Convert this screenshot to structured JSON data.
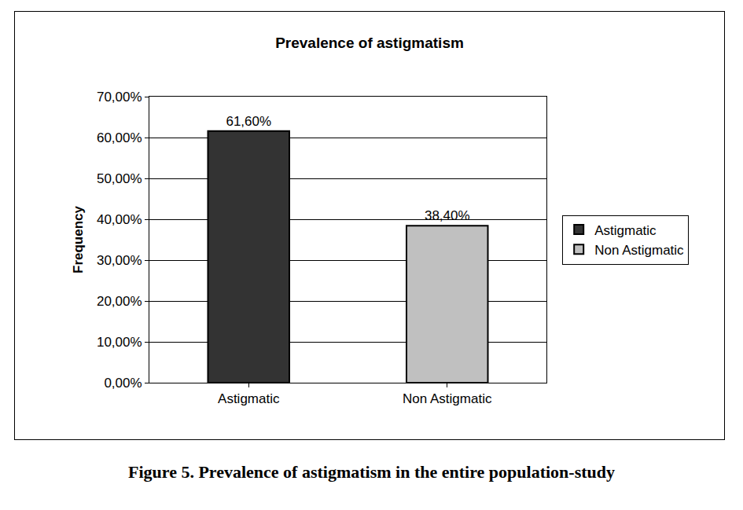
{
  "chart_data": {
    "type": "bar",
    "title": "Prevalence of astigmatism",
    "caption": "Figure 5. Prevalence of astigmatism in the entire population-study",
    "y_label": "Frequency",
    "categories": [
      "Astigmatic",
      "Non Astigmatic"
    ],
    "series": [
      {
        "name": "Astigmatic",
        "color": "#333333",
        "values": [
          61.6,
          null
        ],
        "value_labels": [
          "61,60%",
          null
        ]
      },
      {
        "name": "Non Astigmatic",
        "color": "#c0c0c0",
        "values": [
          null,
          38.4
        ],
        "value_labels": [
          null,
          "38,40%"
        ]
      }
    ],
    "ylim": [
      0,
      70
    ],
    "yticks": [
      {
        "value": 0,
        "label": "0,00%"
      },
      {
        "value": 10,
        "label": "10,00%"
      },
      {
        "value": 20,
        "label": "20,00%"
      },
      {
        "value": 30,
        "label": "30,00%"
      },
      {
        "value": 40,
        "label": "40,00%"
      },
      {
        "value": 50,
        "label": "50,00%"
      },
      {
        "value": 60,
        "label": "60,00%"
      },
      {
        "value": 70,
        "label": "70,00%"
      }
    ],
    "grid": true,
    "legend": "right",
    "data_labels": true
  }
}
